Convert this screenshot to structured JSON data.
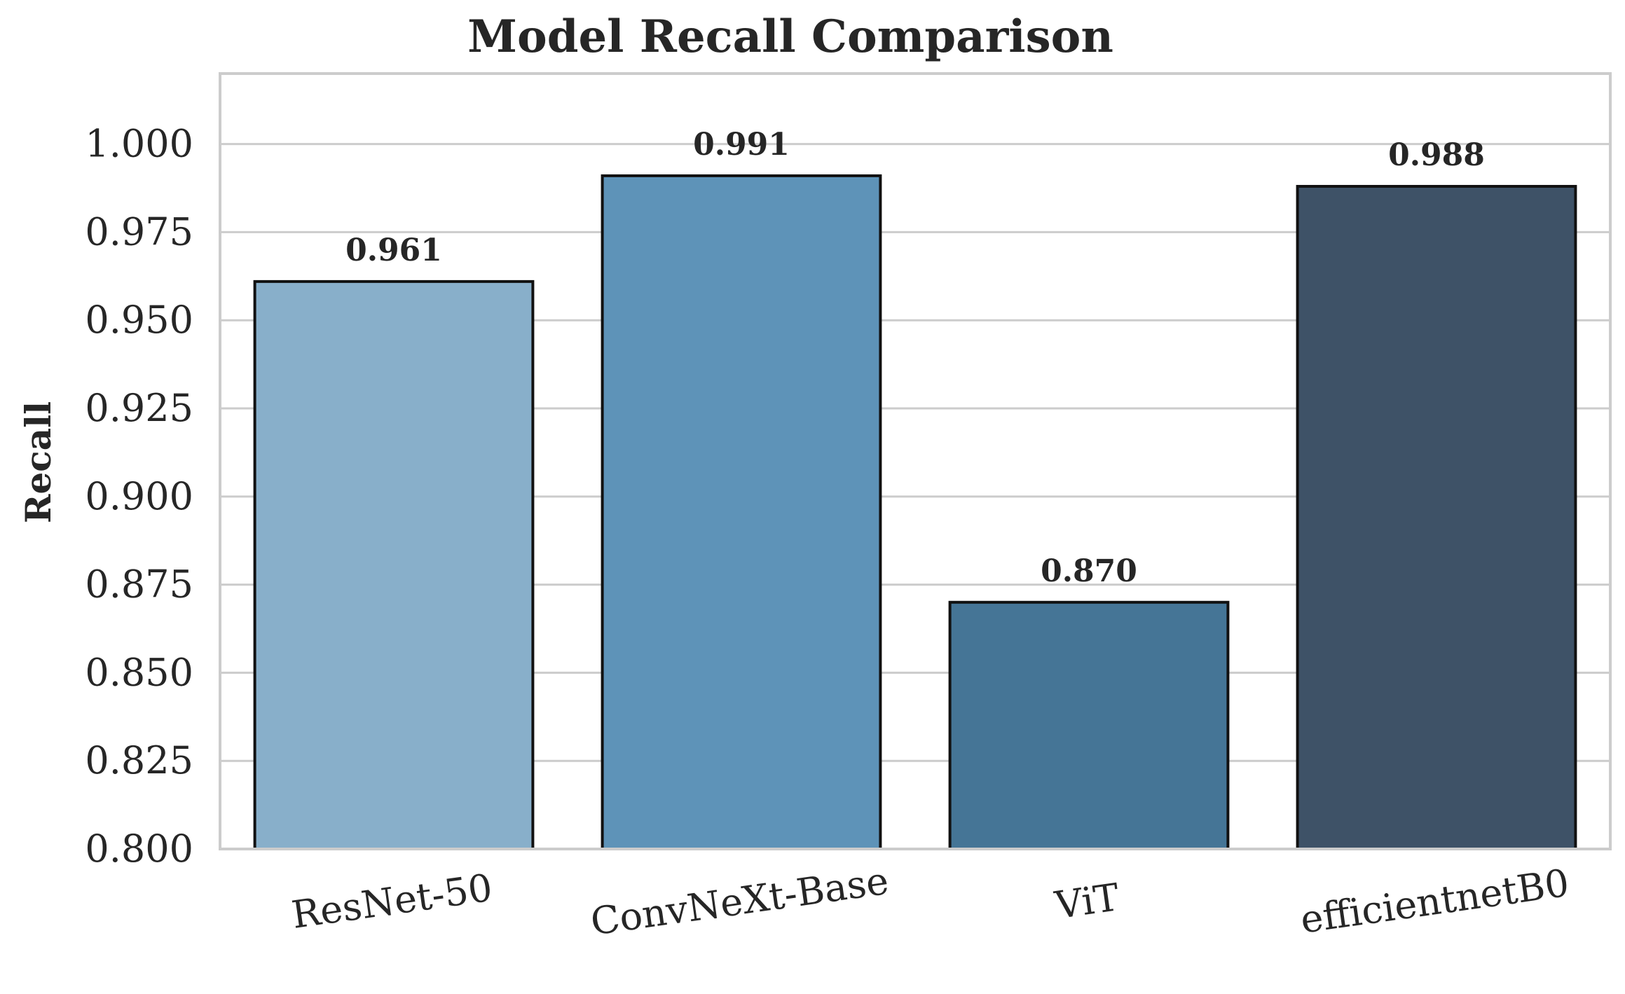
{
  "chart_data": {
    "type": "bar",
    "title": "Model Recall Comparison",
    "xlabel": "",
    "ylabel": "Recall",
    "categories": [
      "ResNet-50",
      "ConvNeXt-Base",
      "ViT",
      "efficientnetB0"
    ],
    "values": [
      0.961,
      0.991,
      0.87,
      0.988
    ],
    "value_labels": [
      "0.961",
      "0.991",
      "0.870",
      "0.988"
    ],
    "bar_colors": [
      "#88afca",
      "#5e93b8",
      "#457596",
      "#3e5267"
    ],
    "ylim": [
      0.8,
      1.02
    ],
    "yticks": [
      0.8,
      0.825,
      0.85,
      0.875,
      0.9,
      0.925,
      0.95,
      0.975,
      1.0
    ],
    "ytick_labels": [
      "0.800",
      "0.825",
      "0.850",
      "0.875",
      "0.900",
      "0.925",
      "0.950",
      "0.975",
      "1.000"
    ],
    "grid": "horizontal",
    "legend": "none"
  }
}
